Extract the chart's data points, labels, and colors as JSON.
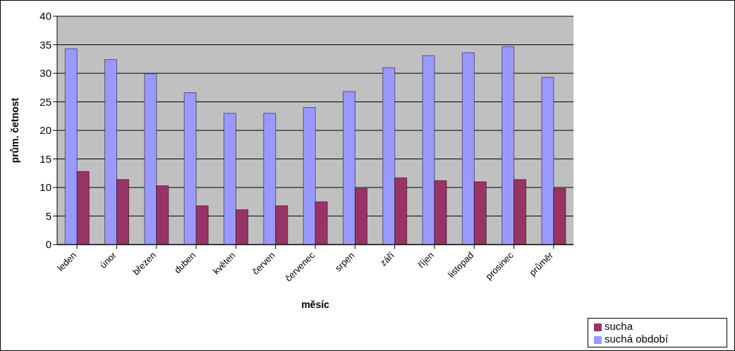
{
  "chart_data": {
    "type": "bar",
    "xlabel": "měsíc",
    "ylabel": "prům. četnost",
    "categories": [
      "leden",
      "únor",
      "březen",
      "duben",
      "květen",
      "červen",
      "červenec",
      "srpen",
      "září",
      "říjen",
      "listopad",
      "prosinec",
      "průměr"
    ],
    "series": [
      {
        "name": "suchá období",
        "color": "#9999ff",
        "values": [
          34.3,
          32.4,
          29.9,
          26.6,
          23.0,
          23.0,
          24.0,
          26.8,
          31.0,
          33.1,
          33.6,
          34.7,
          29.3
        ]
      },
      {
        "name": "sucha",
        "color": "#993366",
        "values": [
          12.8,
          11.4,
          10.3,
          6.8,
          6.1,
          6.8,
          7.5,
          9.8,
          11.7,
          11.2,
          11.0,
          11.4,
          9.8
        ]
      }
    ],
    "ylim": [
      0,
      40
    ],
    "yticks": [
      0,
      5,
      10,
      15,
      20,
      25,
      30,
      35,
      40
    ],
    "grid": "y",
    "legend": "bottom right"
  }
}
